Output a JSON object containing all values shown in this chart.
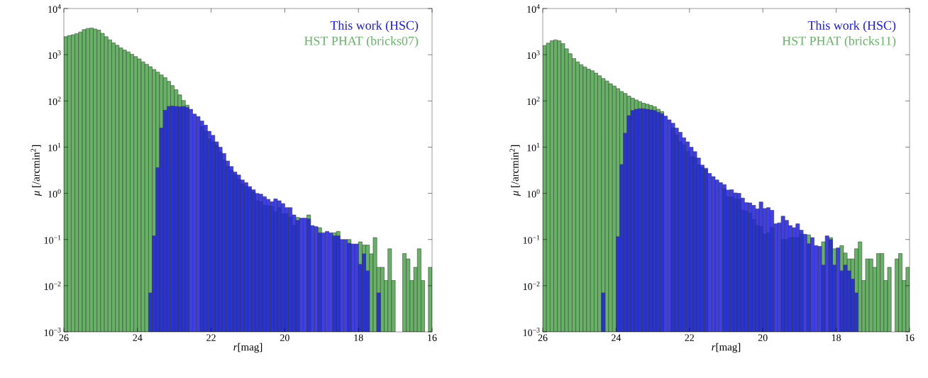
{
  "chart_data": [
    {
      "type": "histogram",
      "xlabel": "*r*[mag]",
      "ylabel": "*μ* [/arcmin$^{2}$]",
      "bins": [
        26,
        25.9,
        25.8,
        25.7,
        25.6,
        25.5,
        25.4,
        25.3,
        25.2,
        25.1,
        25,
        24.9,
        24.8,
        24.7,
        24.6,
        24.5,
        24.4,
        24.3,
        24.2,
        24.1,
        24,
        23.9,
        23.8,
        23.7,
        23.6,
        23.5,
        23.4,
        23.3,
        23.2,
        23.1,
        23,
        22.9,
        22.8,
        22.7,
        22.6,
        22.5,
        22.4,
        22.3,
        22.2,
        22.1,
        22,
        21.9,
        21.8,
        21.7,
        21.6,
        21.5,
        21.4,
        21.3,
        21.2,
        21.1,
        21,
        20.9,
        20.8,
        20.7,
        20.6,
        20.5,
        20.4,
        20.3,
        20.2,
        20.1,
        20,
        19.9,
        19.8,
        19.7,
        19.6,
        19.5,
        19.4,
        19.3,
        19.2,
        19.1,
        19,
        18.9,
        18.8,
        18.7,
        18.6,
        18.5,
        18.4,
        18.3,
        18.2,
        18.1,
        18,
        17.9,
        17.8,
        17.7,
        17.6,
        17.5,
        17.4,
        17.3,
        17.2,
        17.1,
        17,
        16.9,
        16.8,
        16.7,
        16.6,
        16.5,
        16.4,
        16.3,
        16.2,
        16.1,
        16
      ],
      "series": [
        {
          "name": "This work (HSC)",
          "color": "#1c1ce6",
          "values": [
            null,
            null,
            null,
            null,
            null,
            null,
            null,
            null,
            null,
            null,
            null,
            null,
            null,
            null,
            null,
            null,
            null,
            null,
            null,
            null,
            null,
            null,
            null,
            0.007,
            0.12,
            3.6,
            26,
            63,
            76,
            78,
            76,
            75,
            76,
            72,
            66,
            52,
            46,
            37,
            30,
            22,
            18,
            13,
            10,
            7.3,
            5.0,
            3.8,
            2.9,
            2.5,
            1.95,
            1.7,
            1.4,
            1.2,
            0.99,
            0.96,
            0.85,
            0.74,
            0.66,
            0.76,
            0.69,
            0.6,
            0.49,
            0.49,
            0.34,
            0.26,
            0.29,
            0.29,
            0.28,
            0.2,
            0.19,
            0.14,
            0.14,
            0.15,
            0.14,
            0.12,
            0.12,
            0.1,
            0.1,
            0.083,
            0.08,
            0.08,
            0.029,
            0.049,
            0.021,
            null,
            null,
            0.007,
            null,
            null,
            null,
            null,
            null,
            null,
            null,
            null,
            null,
            null,
            null,
            null,
            null,
            null
          ]
        },
        {
          "name": "HST PHAT (bricks07)",
          "color": "#66b366",
          "values": [
            2450,
            2600,
            2700,
            2850,
            3100,
            3500,
            3700,
            3800,
            3600,
            3400,
            2900,
            2450,
            2100,
            1800,
            1600,
            1400,
            1260,
            1150,
            1020,
            910,
            810,
            700,
            620,
            550,
            480,
            420,
            365,
            320,
            265,
            215,
            175,
            135,
            102,
            81,
            null,
            null,
            null,
            28,
            22,
            15,
            13,
            11,
            7.8,
            5.2,
            3.8,
            3.1,
            2.5,
            2.0,
            1.6,
            1.4,
            1.25,
            1.08,
            0.69,
            0.66,
            0.55,
            0.54,
            0.52,
            0.4,
            0.49,
            0.36,
            0.36,
            0.3,
            0.2,
            0.3,
            null,
            null,
            0.34,
            null,
            null,
            0.18,
            null,
            null,
            null,
            0.14,
            0.15,
            null,
            null,
            0.1,
            null,
            null,
            0.089,
            0.076,
            0.076,
            0.049,
            0.11,
            0.025,
            0.025,
            0.013,
            0.063,
            0.013,
            null,
            null,
            0.05,
            0.038,
            0.013,
            0.025,
            0.063,
            0.013,
            null,
            0.025
          ]
        }
      ],
      "xlim": [
        26,
        16
      ],
      "xticks": [
        26,
        24,
        22,
        20,
        18,
        16
      ],
      "ylim": [
        0.001,
        10000
      ],
      "yticks": [
        {
          "value": 0.001,
          "label": "10$^{−3}$"
        },
        {
          "value": 0.01,
          "label": "10$^{−2}$"
        },
        {
          "value": 0.1,
          "label": "10$^{−1}$"
        },
        {
          "value": 1,
          "label": "10$^{0}$"
        },
        {
          "value": 10,
          "label": "10$^{1}$"
        },
        {
          "value": 100,
          "label": "10$^{2}$"
        },
        {
          "value": 1000,
          "label": "10$^{3}$"
        },
        {
          "value": 10000,
          "label": "10$^{4}$"
        }
      ],
      "log": "y",
      "legend": "top right"
    },
    {
      "type": "histogram",
      "xlabel": "*r*[mag]",
      "ylabel": "*μ* [/arcmin$^{2}$]",
      "bins": [
        26,
        25.9,
        25.8,
        25.7,
        25.6,
        25.5,
        25.4,
        25.3,
        25.2,
        25.1,
        25,
        24.9,
        24.8,
        24.7,
        24.6,
        24.5,
        24.4,
        24.3,
        24.2,
        24.1,
        24,
        23.9,
        23.8,
        23.7,
        23.6,
        23.5,
        23.4,
        23.3,
        23.2,
        23.1,
        23,
        22.9,
        22.8,
        22.7,
        22.6,
        22.5,
        22.4,
        22.3,
        22.2,
        22.1,
        22,
        21.9,
        21.8,
        21.7,
        21.6,
        21.5,
        21.4,
        21.3,
        21.2,
        21.1,
        21,
        20.9,
        20.8,
        20.7,
        20.6,
        20.5,
        20.4,
        20.3,
        20.2,
        20.1,
        20,
        19.9,
        19.8,
        19.7,
        19.6,
        19.5,
        19.4,
        19.3,
        19.2,
        19.1,
        19,
        18.9,
        18.8,
        18.7,
        18.6,
        18.5,
        18.4,
        18.3,
        18.2,
        18.1,
        18,
        17.9,
        17.8,
        17.7,
        17.6,
        17.5,
        17.4,
        17.3,
        17.2,
        17.1,
        17,
        16.9,
        16.8,
        16.7,
        16.6,
        16.5,
        16.4,
        16.3,
        16.2,
        16.1,
        16
      ],
      "series": [
        {
          "name": "This work (HSC)",
          "color": "#1c1ce6",
          "values": [
            null,
            null,
            null,
            null,
            null,
            null,
            null,
            null,
            null,
            null,
            null,
            null,
            null,
            null,
            null,
            null,
            0.007,
            null,
            null,
            null,
            0.115,
            4.2,
            20,
            48,
            62,
            66,
            68,
            68,
            66,
            64,
            62,
            57,
            53,
            47,
            39,
            33,
            26,
            21,
            16,
            13,
            10,
            8.0,
            5.8,
            4.1,
            3.5,
            2.7,
            2.3,
            1.95,
            1.7,
            1.55,
            1.18,
            1.2,
            1.02,
            1.0,
            0.79,
            0.63,
            0.62,
            0.55,
            0.46,
            0.65,
            0.47,
            0.49,
            0.43,
            0.22,
            0.23,
            0.32,
            0.26,
            0.2,
            0.18,
            0.22,
            0.16,
            0.13,
            0.081,
            0.11,
            0.074,
            0.071,
            0.028,
            0.12,
            0.1,
            0.028,
            0.066,
            0.021,
            0.028,
            0.021,
            0.014,
            0.007,
            null,
            null,
            null,
            null,
            null,
            null,
            null,
            null,
            null,
            null,
            null,
            null,
            null,
            null
          ]
        },
        {
          "name": "HST PHAT (bricks11)",
          "color": "#66b366",
          "values": [
            1580,
            1780,
            2000,
            2100,
            2000,
            1740,
            1340,
            1050,
            830,
            700,
            610,
            540,
            490,
            450,
            400,
            350,
            305,
            270,
            235,
            210,
            185,
            160,
            145,
            127,
            115,
            105,
            97,
            89,
            85,
            80,
            75,
            66,
            59,
            null,
            null,
            26,
            18,
            13,
            11,
            8.1,
            6.2,
            5.9,
            4.1,
            3.6,
            3.2,
            null,
            null,
            null,
            null,
            1.25,
            0.83,
            0.83,
            0.74,
            0.74,
            0.43,
            0.41,
            0.37,
            0.27,
            0.2,
            0.19,
            0.13,
            0.14,
            0.18,
            null,
            null,
            0.1,
            0.1,
            0.11,
            0.11,
            0.11,
            0.13,
            null,
            0.126,
            null,
            null,
            null,
            0.089,
            null,
            0.11,
            0.063,
            null,
            0.074,
            0.051,
            0.038,
            0.038,
            0.063,
            0.089,
            0.013,
            0.038,
            0.038,
            0.025,
            0.05,
            0.05,
            0.013,
            0.025,
            null,
            0.038,
            0.05,
            0.013,
            0.025
          ]
        }
      ],
      "xlim": [
        26,
        16
      ],
      "xticks": [
        26,
        24,
        22,
        20,
        18,
        16
      ],
      "ylim": [
        0.001,
        10000
      ],
      "yticks": [
        {
          "value": 0.001,
          "label": "10$^{−3}$"
        },
        {
          "value": 0.01,
          "label": "10$^{−2}$"
        },
        {
          "value": 0.1,
          "label": "10$^{−1}$"
        },
        {
          "value": 1,
          "label": "10$^{0}$"
        },
        {
          "value": 10,
          "label": "10$^{1}$"
        },
        {
          "value": 100,
          "label": "10$^{2}$"
        },
        {
          "value": 1000,
          "label": "10$^{3}$"
        },
        {
          "value": 10000,
          "label": "10$^{4}$"
        }
      ],
      "log": "y",
      "legend": "top right"
    }
  ]
}
